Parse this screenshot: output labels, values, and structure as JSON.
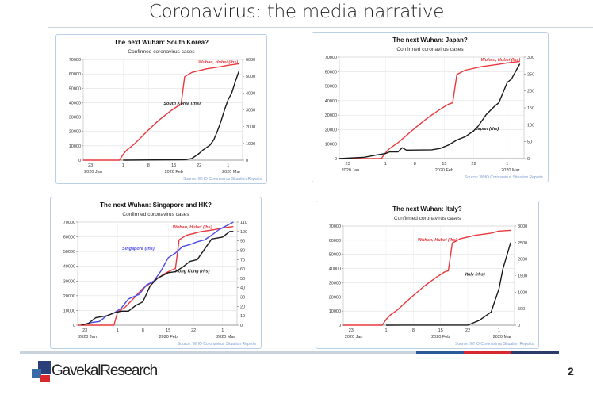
{
  "slide": {
    "title": "Coronavirus: the media narrative",
    "page_number": "2",
    "logo_text": "GavekalResearch",
    "footer_colors": [
      "#c9d3de",
      "#2a5a9a",
      "#d8282f",
      "#2a3a6a"
    ]
  },
  "colors": {
    "wuhan": "#e8383d",
    "black": "#1a1a1a",
    "singapore": "#4a4ae8",
    "source": "#7a9cd0",
    "border": "#b9cfe6"
  },
  "chart_data": [
    {
      "type": "line",
      "title": "The next Wuhan: South Korea?",
      "subtitle": "Confirmed coronavirus cases",
      "source": "Source: WHO Coronavirus Situation Reports",
      "x_ticks": [
        "23",
        "1",
        "8",
        "15",
        "22",
        "1"
      ],
      "x_tick_dates": [
        "2020-01-23",
        "2020-02-01",
        "2020-02-08",
        "2020-02-15",
        "2020-02-22",
        "2020-03-01"
      ],
      "x_group_labels": [
        "2020 Jan",
        "2020 Feb",
        "2020 Mar"
      ],
      "xlim": [
        "2020-01-21",
        "2020-03-05"
      ],
      "ylim_left": [
        0,
        70000
      ],
      "yticks_left": [
        0,
        10000,
        20000,
        30000,
        40000,
        50000,
        60000,
        70000
      ],
      "ylim_right": [
        0,
        6000
      ],
      "yticks_right": [
        0,
        1000,
        2000,
        3000,
        4000,
        5000,
        6000
      ],
      "grid": true,
      "series": [
        {
          "name": "Wuhan, Hubei (lhs)",
          "axis": "left",
          "color": "#e8383d",
          "points": [
            [
              "2020-01-21",
              0
            ],
            [
              "2020-01-31",
              0
            ],
            [
              "2020-02-01",
              4000
            ],
            [
              "2020-02-02",
              7000
            ],
            [
              "2020-02-04",
              11000
            ],
            [
              "2020-02-06",
              16000
            ],
            [
              "2020-02-08",
              21000
            ],
            [
              "2020-02-11",
              28000
            ],
            [
              "2020-02-14",
              34000
            ],
            [
              "2020-02-16",
              37500
            ],
            [
              "2020-02-17",
              38500
            ],
            [
              "2020-02-18",
              58000
            ],
            [
              "2020-02-20",
              61000
            ],
            [
              "2020-02-24",
              63500
            ],
            [
              "2020-02-28",
              65000
            ],
            [
              "2020-03-01",
              66000
            ],
            [
              "2020-03-04",
              67000
            ]
          ]
        },
        {
          "name": "South Korea (rhs)",
          "axis": "right",
          "color": "#1a1a1a",
          "points": [
            [
              "2020-02-01",
              0
            ],
            [
              "2020-02-18",
              30
            ],
            [
              "2020-02-20",
              100
            ],
            [
              "2020-02-22",
              400
            ],
            [
              "2020-02-23",
              600
            ],
            [
              "2020-02-25",
              900
            ],
            [
              "2020-02-26",
              1200
            ],
            [
              "2020-02-27",
              1700
            ],
            [
              "2020-02-28",
              2300
            ],
            [
              "2020-02-29",
              3000
            ],
            [
              "2020-03-01",
              3600
            ],
            [
              "2020-03-02",
              4000
            ],
            [
              "2020-03-03",
              4700
            ],
            [
              "2020-03-04",
              5300
            ]
          ]
        }
      ]
    },
    {
      "type": "line",
      "title": "The next Wuhan: Japan?",
      "subtitle": "Confirmed coronavirus cases",
      "source": "Source: WHO Coronavirus Situation Reports",
      "x_ticks": [
        "23",
        "1",
        "8",
        "15",
        "22",
        "1"
      ],
      "x_tick_dates": [
        "2020-01-23",
        "2020-02-01",
        "2020-02-08",
        "2020-02-15",
        "2020-02-22",
        "2020-03-01"
      ],
      "x_group_labels": [
        "2020 Jan",
        "2020 Feb",
        "2020 Mar"
      ],
      "xlim": [
        "2020-01-21",
        "2020-03-05"
      ],
      "ylim_left": [
        0,
        70000
      ],
      "yticks_left": [
        0,
        10000,
        20000,
        30000,
        40000,
        50000,
        60000,
        70000
      ],
      "ylim_right": [
        0,
        300
      ],
      "yticks_right": [
        0,
        50,
        100,
        150,
        200,
        250,
        300
      ],
      "grid": true,
      "series": [
        {
          "name": "Wuhan, Hubei (lhs)",
          "axis": "left",
          "color": "#e8383d",
          "points": [
            [
              "2020-01-21",
              0
            ],
            [
              "2020-01-31",
              0
            ],
            [
              "2020-02-01",
              4000
            ],
            [
              "2020-02-02",
              7000
            ],
            [
              "2020-02-04",
              11000
            ],
            [
              "2020-02-06",
              16000
            ],
            [
              "2020-02-08",
              21000
            ],
            [
              "2020-02-11",
              28000
            ],
            [
              "2020-02-14",
              34000
            ],
            [
              "2020-02-16",
              37500
            ],
            [
              "2020-02-17",
              38500
            ],
            [
              "2020-02-18",
              58000
            ],
            [
              "2020-02-20",
              61000
            ],
            [
              "2020-02-24",
              63500
            ],
            [
              "2020-02-28",
              65000
            ],
            [
              "2020-03-01",
              66000
            ],
            [
              "2020-03-04",
              67000
            ]
          ]
        },
        {
          "name": "Japan (rhs)",
          "axis": "right",
          "color": "#1a1a1a",
          "points": [
            [
              "2020-01-21",
              0
            ],
            [
              "2020-01-27",
              4
            ],
            [
              "2020-01-30",
              11
            ],
            [
              "2020-02-01",
              15
            ],
            [
              "2020-02-02",
              20
            ],
            [
              "2020-02-04",
              20
            ],
            [
              "2020-02-05",
              32
            ],
            [
              "2020-02-06",
              25
            ],
            [
              "2020-02-12",
              26
            ],
            [
              "2020-02-14",
              30
            ],
            [
              "2020-02-16",
              40
            ],
            [
              "2020-02-18",
              55
            ],
            [
              "2020-02-20",
              65
            ],
            [
              "2020-02-22",
              82
            ],
            [
              "2020-02-23",
              95
            ],
            [
              "2020-02-25",
              130
            ],
            [
              "2020-02-27",
              155
            ],
            [
              "2020-02-28",
              165
            ],
            [
              "2020-03-01",
              225
            ],
            [
              "2020-03-02",
              235
            ],
            [
              "2020-03-04",
              280
            ]
          ]
        }
      ]
    },
    {
      "type": "line",
      "title": "The next Wuhan: Singapore and HK?",
      "subtitle": "Confirmed coronavirus cases",
      "source": "Source: WHO Coronavirus Situation Reports",
      "x_ticks": [
        "23",
        "1",
        "8",
        "15",
        "22",
        "1"
      ],
      "x_tick_dates": [
        "2020-01-23",
        "2020-02-01",
        "2020-02-08",
        "2020-02-15",
        "2020-02-22",
        "2020-03-01"
      ],
      "x_group_labels": [
        "2020 Jan",
        "2020 Feb",
        "2020 Mar"
      ],
      "xlim": [
        "2020-01-21",
        "2020-03-05"
      ],
      "ylim_left": [
        0,
        70000
      ],
      "yticks_left": [
        0,
        10000,
        20000,
        30000,
        40000,
        50000,
        60000,
        70000
      ],
      "ylim_right": [
        0,
        110
      ],
      "yticks_right": [
        0,
        10,
        20,
        30,
        40,
        50,
        60,
        70,
        80,
        90,
        100,
        110
      ],
      "grid": true,
      "series": [
        {
          "name": "Wuhan, Hubei (lhs)",
          "axis": "left",
          "color": "#e8383d",
          "points": [
            [
              "2020-01-21",
              0
            ],
            [
              "2020-01-31",
              0
            ],
            [
              "2020-02-01",
              9000
            ],
            [
              "2020-02-03",
              12000
            ],
            [
              "2020-02-05",
              17000
            ],
            [
              "2020-02-08",
              25000
            ],
            [
              "2020-02-11",
              30000
            ],
            [
              "2020-02-14",
              35000
            ],
            [
              "2020-02-16",
              37500
            ],
            [
              "2020-02-17",
              38500
            ],
            [
              "2020-02-18",
              58000
            ],
            [
              "2020-02-20",
              61000
            ],
            [
              "2020-02-24",
              63500
            ],
            [
              "2020-02-28",
              65000
            ],
            [
              "2020-03-01",
              66000
            ],
            [
              "2020-03-04",
              67000
            ]
          ]
        },
        {
          "name": "Singapore (rhs)",
          "axis": "right",
          "color": "#4a4ae8",
          "points": [
            [
              "2020-01-23",
              1
            ],
            [
              "2020-01-25",
              3
            ],
            [
              "2020-01-27",
              4
            ],
            [
              "2020-01-29",
              10
            ],
            [
              "2020-01-31",
              13
            ],
            [
              "2020-02-02",
              18
            ],
            [
              "2020-02-04",
              28
            ],
            [
              "2020-02-07",
              33
            ],
            [
              "2020-02-09",
              43
            ],
            [
              "2020-02-11",
              47
            ],
            [
              "2020-02-13",
              58
            ],
            [
              "2020-02-15",
              72
            ],
            [
              "2020-02-17",
              77
            ],
            [
              "2020-02-19",
              84
            ],
            [
              "2020-02-21",
              86
            ],
            [
              "2020-02-23",
              89
            ],
            [
              "2020-02-25",
              91
            ],
            [
              "2020-02-27",
              96
            ],
            [
              "2020-02-29",
              102
            ],
            [
              "2020-03-02",
              106
            ],
            [
              "2020-03-04",
              110
            ]
          ]
        },
        {
          "name": "Hong Kong (rhs)",
          "axis": "right",
          "color": "#1a1a1a",
          "points": [
            [
              "2020-01-22",
              0
            ],
            [
              "2020-01-24",
              2
            ],
            [
              "2020-01-26",
              8
            ],
            [
              "2020-01-29",
              10
            ],
            [
              "2020-01-31",
              13
            ],
            [
              "2020-02-02",
              15
            ],
            [
              "2020-02-04",
              15
            ],
            [
              "2020-02-06",
              21
            ],
            [
              "2020-02-08",
              25
            ],
            [
              "2020-02-10",
              42
            ],
            [
              "2020-02-12",
              50
            ],
            [
              "2020-02-15",
              56
            ],
            [
              "2020-02-17",
              57
            ],
            [
              "2020-02-19",
              62
            ],
            [
              "2020-02-21",
              68
            ],
            [
              "2020-02-23",
              70
            ],
            [
              "2020-02-25",
              81
            ],
            [
              "2020-02-27",
              92
            ],
            [
              "2020-03-01",
              94
            ],
            [
              "2020-03-03",
              100
            ],
            [
              "2020-03-04",
              100
            ]
          ]
        }
      ]
    },
    {
      "type": "line",
      "title": "The next Wuhan: Italy?",
      "subtitle": "Confirmed coronavirus cases",
      "source": "Source: WHO Coronavirus Situation Reports",
      "x_ticks": [
        "23",
        "1",
        "8",
        "15",
        "22",
        "1"
      ],
      "x_tick_dates": [
        "2020-01-23",
        "2020-02-01",
        "2020-02-08",
        "2020-02-15",
        "2020-02-22",
        "2020-03-01"
      ],
      "x_group_labels": [
        "2020 Jan",
        "2020 Feb",
        "2020 Mar"
      ],
      "xlim": [
        "2020-01-21",
        "2020-03-05"
      ],
      "ylim_left": [
        0,
        70000
      ],
      "yticks_left": [
        0,
        10000,
        20000,
        30000,
        40000,
        50000,
        60000,
        70000
      ],
      "ylim_right": [
        0,
        3000
      ],
      "yticks_right": [
        0,
        500,
        1000,
        1500,
        2000,
        2500,
        3000
      ],
      "grid": true,
      "series": [
        {
          "name": "Wuhan, Hubei (lhs)",
          "axis": "left",
          "color": "#e8383d",
          "points": [
            [
              "2020-01-21",
              0
            ],
            [
              "2020-01-31",
              0
            ],
            [
              "2020-02-01",
              4000
            ],
            [
              "2020-02-02",
              7000
            ],
            [
              "2020-02-04",
              11000
            ],
            [
              "2020-02-06",
              16000
            ],
            [
              "2020-02-08",
              21000
            ],
            [
              "2020-02-11",
              28000
            ],
            [
              "2020-02-14",
              34000
            ],
            [
              "2020-02-16",
              37500
            ],
            [
              "2020-02-17",
              38500
            ],
            [
              "2020-02-18",
              58000
            ],
            [
              "2020-02-20",
              61000
            ],
            [
              "2020-02-24",
              63500
            ],
            [
              "2020-02-28",
              65000
            ],
            [
              "2020-03-01",
              66500
            ],
            [
              "2020-03-04",
              67000
            ]
          ]
        },
        {
          "name": "Italy (rhs)",
          "axis": "right",
          "color": "#1a1a1a",
          "points": [
            [
              "2020-02-01",
              0
            ],
            [
              "2020-02-22",
              3
            ],
            [
              "2020-02-23",
              50
            ],
            [
              "2020-02-25",
              150
            ],
            [
              "2020-02-28",
              400
            ],
            [
              "2020-03-01",
              1100
            ],
            [
              "2020-03-02",
              1700
            ],
            [
              "2020-03-04",
              2500
            ]
          ]
        }
      ]
    }
  ]
}
